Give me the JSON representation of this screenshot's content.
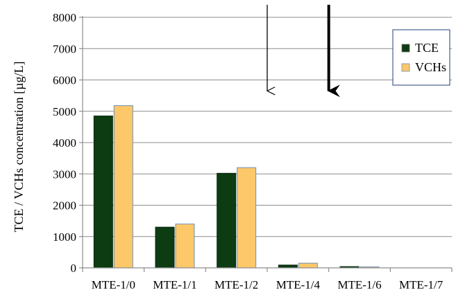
{
  "chart_data": {
    "type": "bar",
    "title": "",
    "xlabel": "",
    "ylabel": "TCE / VCHs concentration  [µg/L]",
    "ylim": [
      0,
      8000
    ],
    "yticks": [
      "0",
      "1000",
      "2000",
      "3000",
      "4000",
      "5000",
      "6000",
      "7000",
      "8000"
    ],
    "grid": true,
    "legend_position": "top-right",
    "categories": [
      "MTE-1/0",
      "MTE-1/1",
      "MTE-1/2",
      "MTE-1/4",
      "MTE-1/6",
      "MTE-1/7"
    ],
    "series": [
      {
        "name": "TCE",
        "color": "#0d3b12",
        "values": [
          4850,
          1300,
          3020,
          90,
          40,
          0
        ]
      },
      {
        "name": "VCHs",
        "color": "#fcc86a",
        "values": [
          5180,
          1400,
          3200,
          150,
          30,
          0
        ]
      }
    ],
    "annotations": [
      {
        "type": "arrow",
        "style": "thin",
        "category": "MTE-1/2",
        "side": "right",
        "from_y": 8400,
        "to_y": 5650
      },
      {
        "type": "arrow",
        "style": "thick",
        "category": "MTE-1/4",
        "side": "right",
        "from_y": 8400,
        "to_y": 5650
      }
    ]
  }
}
